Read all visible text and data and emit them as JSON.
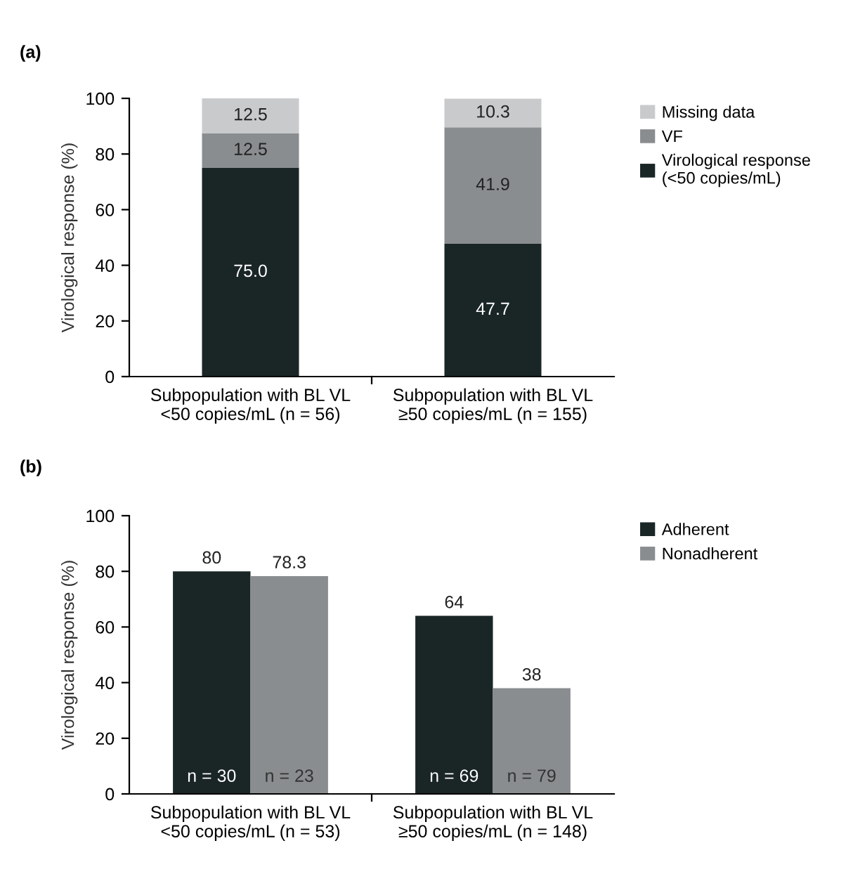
{
  "chart_data": [
    {
      "type": "bar",
      "title": "(a)",
      "ylabel": "Virological response (%)",
      "stacked": true,
      "legend": "right",
      "grid": false,
      "categories": [
        "Subpopulation with BL VL\n<50 copies/mL (n = 56)",
        "Subpopulation with BL VL\n≥50 copies/mL (n = 155)"
      ],
      "series": [
        {
          "name": "Virological response\n(<50 copies/mL)",
          "color": "#1a2526",
          "values": [
            75.0,
            47.7
          ],
          "value_labels": [
            "75.0",
            "47.7"
          ]
        },
        {
          "name": "VF",
          "color": "#8a8d8f",
          "values": [
            12.5,
            41.9
          ],
          "value_labels": [
            "12.5",
            "41.9"
          ]
        },
        {
          "name": "Missing data",
          "color": "#c9cacc",
          "values": [
            12.5,
            10.3
          ],
          "value_labels": [
            "12.5",
            "10.3"
          ]
        }
      ],
      "ylim": [
        0,
        100
      ],
      "yticks": [
        0,
        20,
        40,
        60,
        80,
        100
      ]
    },
    {
      "type": "bar",
      "title": "(b)",
      "ylabel": "Virological response (%)",
      "data_labels": true,
      "legend": "right",
      "grid": false,
      "categories": [
        "Subpopulation with BL VL\n<50 copies/mL (n = 53)",
        "Subpopulation with BL VL\n≥50 copies/mL (n = 148)"
      ],
      "series": [
        {
          "name": "Adherent",
          "color": "#1a2526",
          "values": [
            80,
            64
          ]
        },
        {
          "name": "Nonadherent",
          "color": "#8a8d8f",
          "values": [
            78.3,
            38
          ]
        }
      ],
      "annotations": [
        "n = 30",
        "n = 23",
        "n = 69",
        "n = 79"
      ],
      "ylim": [
        0,
        100
      ],
      "yticks": [
        0,
        20,
        40,
        60,
        80,
        100
      ]
    }
  ]
}
